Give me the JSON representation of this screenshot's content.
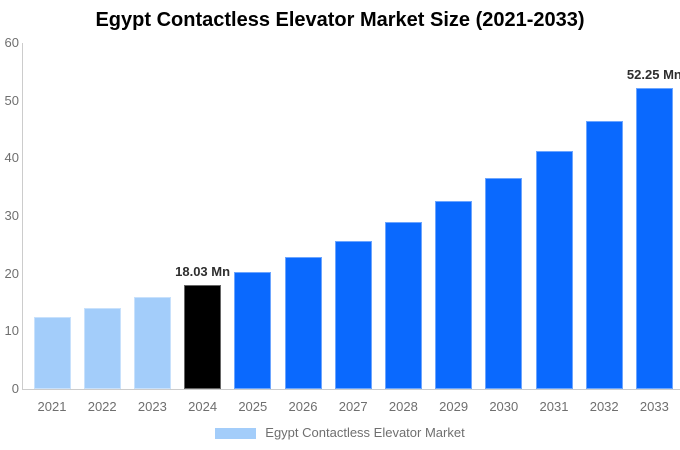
{
  "page": {
    "background_color": "#FFFFFF"
  },
  "chart_data": {
    "type": "bar",
    "title": "Egypt Contactless Elevator Market Size (2021-2033)",
    "categories": [
      "2021",
      "2022",
      "2023",
      "2024",
      "2025",
      "2026",
      "2027",
      "2028",
      "2029",
      "2030",
      "2031",
      "2032",
      "2033"
    ],
    "values": [
      12.4,
      14.05,
      15.92,
      18.03,
      20.29,
      22.84,
      25.71,
      28.93,
      32.56,
      36.65,
      41.25,
      46.43,
      52.25
    ],
    "bar_colors": [
      "#A3CDFA",
      "#A3CDFA",
      "#A3CDFA",
      "#000000",
      "#0A69FE",
      "#0A69FE",
      "#0A69FE",
      "#0A69FE",
      "#0A69FE",
      "#0A69FE",
      "#0A69FE",
      "#0A69FE",
      "#0A69FE"
    ],
    "data_labels": [
      "",
      "",
      "",
      "18.03 Mn",
      "",
      "",
      "",
      "",
      "",
      "",
      "",
      "",
      "52.25 Mn"
    ],
    "yticks": [
      0,
      10,
      20,
      30,
      40,
      50,
      60
    ],
    "ylim": [
      0,
      60
    ],
    "xlabel": "",
    "ylabel": "",
    "grid": false,
    "legend": {
      "label": "Egypt Contactless Elevator Market",
      "swatch_color": "#A3CDFA",
      "position": "bottom"
    },
    "palette": {
      "historical_bar": "#A3CDFA",
      "forecast_bar": "#0A69FE",
      "highlight_bar": "#000000",
      "title_text": "#000000",
      "axis_text": "#6F6F6F",
      "axis_line": "#CCCCCC",
      "value_label_text": "#2E2E2E"
    }
  }
}
